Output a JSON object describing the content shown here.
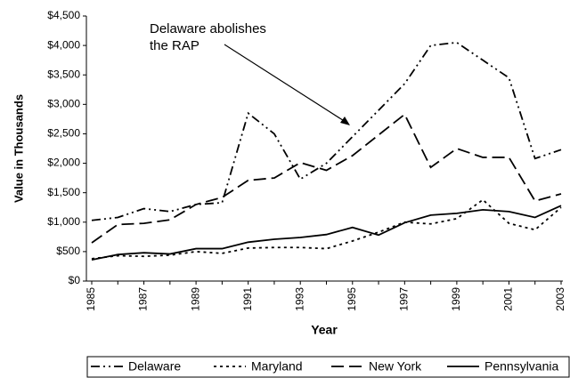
{
  "chart_data": {
    "type": "line",
    "annotation": [
      "Delaware abolishes",
      "the RAP"
    ],
    "xlabel": "Year",
    "ylabel": "Value in Thousands",
    "categories": [
      "1985",
      null,
      "1987",
      null,
      "1989",
      null,
      "1991",
      null,
      "1993",
      null,
      "1995",
      null,
      "1997",
      null,
      "1999",
      null,
      "2001",
      null,
      "2003"
    ],
    "series": [
      {
        "name": "Delaware",
        "color": "#000000",
        "dash": "10,4,2,4,2,4",
        "values": [
          1030,
          1080,
          1230,
          1180,
          1300,
          1330,
          2850,
          2500,
          1730,
          2000,
          2450,
          2900,
          3350,
          4000,
          4050,
          3750,
          3450,
          2080,
          2230
        ]
      },
      {
        "name": "Maryland",
        "color": "#000000",
        "dash": "3,4",
        "values": [
          380,
          430,
          420,
          440,
          500,
          470,
          560,
          570,
          570,
          550,
          680,
          830,
          1000,
          970,
          1060,
          1380,
          980,
          870,
          1250
        ]
      },
      {
        "name": "New York",
        "color": "#000000",
        "dash": "14,6",
        "values": [
          650,
          960,
          980,
          1040,
          1300,
          1420,
          1710,
          1750,
          2010,
          1880,
          2130,
          2480,
          2830,
          1930,
          2250,
          2100,
          2100,
          1360,
          1480
        ]
      },
      {
        "name": "Pennsylvania",
        "color": "#000000",
        "dash": "none",
        "values": [
          360,
          450,
          480,
          460,
          550,
          550,
          660,
          710,
          740,
          790,
          910,
          780,
          990,
          1120,
          1150,
          1210,
          1180,
          1080,
          1280
        ]
      }
    ],
    "ylim": [
      0,
      4500
    ],
    "yticks": [
      {
        "value": 0,
        "label": "$0"
      },
      {
        "value": 500,
        "label": "$500"
      },
      {
        "value": 1000,
        "label": "$1,000"
      },
      {
        "value": 1500,
        "label": "$1,500"
      },
      {
        "value": 2000,
        "label": "$2,000"
      },
      {
        "value": 2500,
        "label": "$2,500"
      },
      {
        "value": 3000,
        "label": "$3,000"
      },
      {
        "value": 3500,
        "label": "$3,500"
      },
      {
        "value": 4000,
        "label": "$4,000"
      },
      {
        "value": 4500,
        "label": "$4,500"
      }
    ],
    "legend": "bottom"
  }
}
